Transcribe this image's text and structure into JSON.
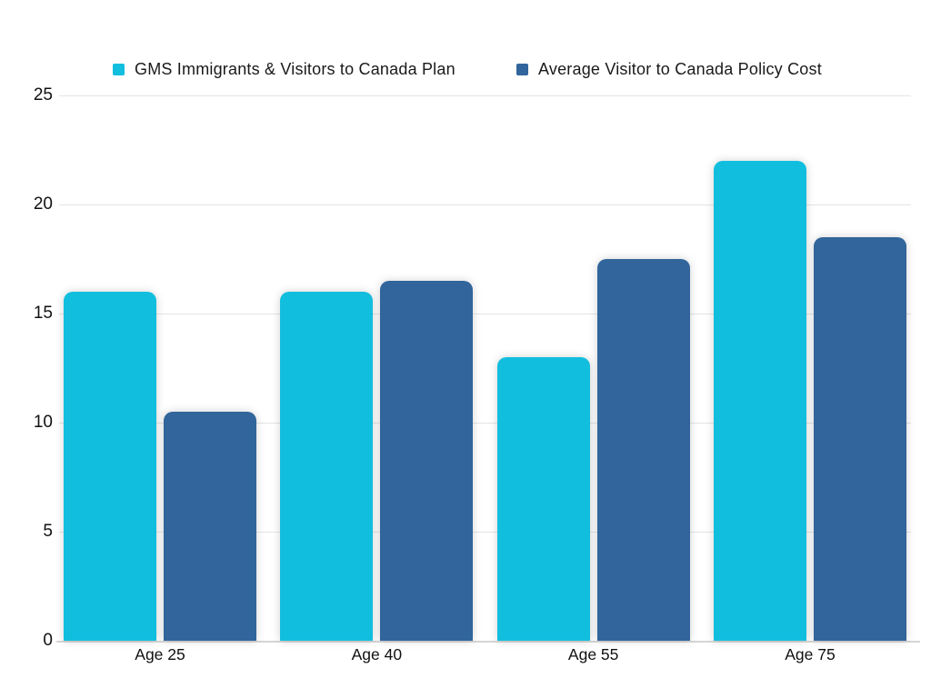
{
  "chart_data": {
    "type": "bar",
    "title": "",
    "xlabel": "",
    "ylabel": "",
    "categories": [
      "Age 25",
      "Age 40",
      "Age 55",
      "Age 75"
    ],
    "series": [
      {
        "name": "GMS Immigrants & Visitors to Canada Plan",
        "color": "#12BEDE",
        "values": [
          16.0,
          16.0,
          13.0,
          22.0
        ]
      },
      {
        "name": "Average Visitor to Canada Policy Cost",
        "color": "#31659B",
        "values": [
          10.5,
          16.5,
          17.5,
          18.5
        ]
      }
    ],
    "y_ticks": [
      0,
      5,
      10,
      15,
      20,
      25
    ],
    "ylim": [
      0,
      25
    ],
    "grid": true,
    "legend_position": "top",
    "colors": {
      "gridline": "#e4e4e4",
      "axis_line": "#d6d6d6",
      "text": "#1a1a1a",
      "background": "#ffffff"
    }
  }
}
